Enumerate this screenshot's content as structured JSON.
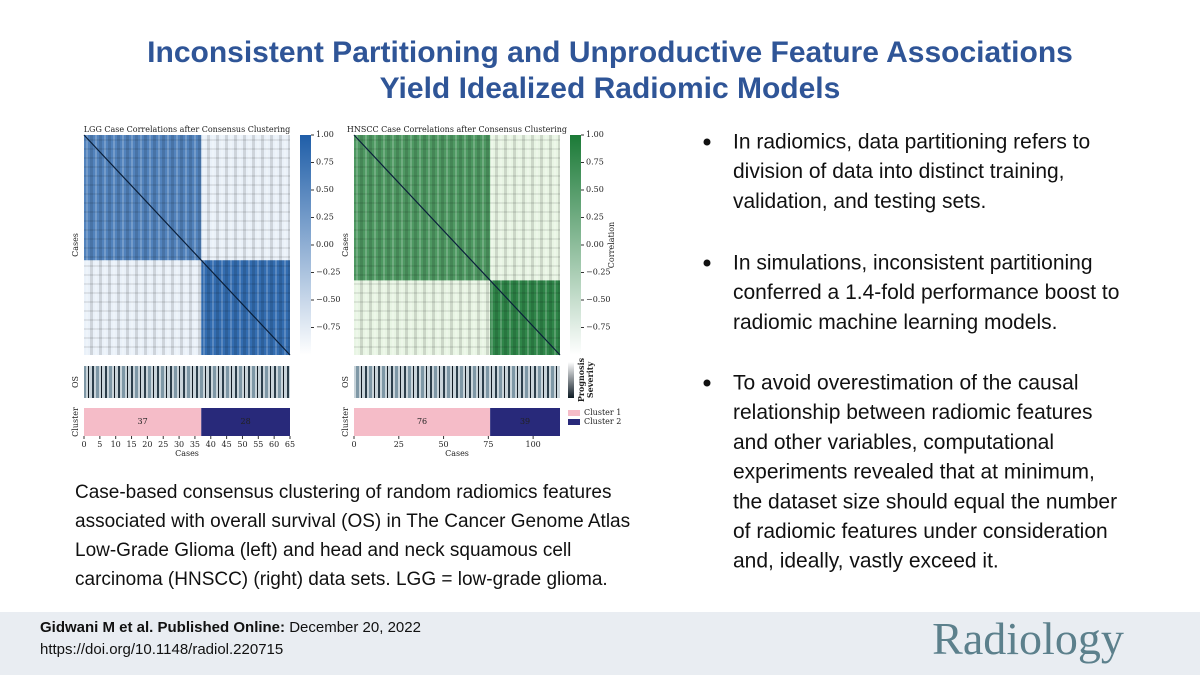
{
  "title": [
    "Inconsistent Partitioning and Unproductive Feature Associations",
    "Yield Idealized Radiomic Models"
  ],
  "figures": [
    {
      "title": "LGG Case Correlations after Consensus Clustering",
      "y_label": "Cases",
      "color": "#1f5ea8",
      "light_color": "#eaf1f9",
      "clim": [
        -1,
        1
      ],
      "colorbar_ticks": [
        {
          "value": 1,
          "label": "1.00"
        },
        {
          "value": 0.75,
          "label": "0.75"
        },
        {
          "value": 0.5,
          "label": "0.50"
        },
        {
          "value": 0.25,
          "label": "0.25"
        },
        {
          "value": 0,
          "label": "0.00"
        },
        {
          "value": -0.25,
          "label": "−0.25"
        },
        {
          "value": -0.5,
          "label": "−0.50"
        },
        {
          "value": -0.75,
          "label": "−0.75"
        }
      ],
      "os_label": "OS",
      "cluster_label": "Cluster",
      "clusters": [
        37,
        28
      ],
      "x_ticks": [
        0,
        5,
        10,
        15,
        20,
        25,
        30,
        35,
        40,
        45,
        50,
        55,
        60,
        65
      ],
      "x_label": "Cases"
    },
    {
      "title": "HNSCC Case Correlations after Consensus Clustering",
      "y_label": "Cases",
      "color": "#1b7a37",
      "light_color": "#e8f5e4",
      "clim": [
        -1,
        1
      ],
      "colorbar_ticks": [
        {
          "value": 1,
          "label": "1.00"
        },
        {
          "value": 0.75,
          "label": "0.75"
        },
        {
          "value": 0.5,
          "label": "0.50"
        },
        {
          "value": 0.25,
          "label": "0.25"
        },
        {
          "value": 0,
          "label": "0.00"
        },
        {
          "value": -0.25,
          "label": "−0.25"
        },
        {
          "value": -0.5,
          "label": "−0.50"
        },
        {
          "value": -0.75,
          "label": "−0.75"
        }
      ],
      "colorbar_label": "Correlation",
      "os_label": "OS",
      "os_colorbar_label": [
        "Prognosis",
        "Severity"
      ],
      "cluster_label": "Cluster",
      "clusters": [
        76,
        39
      ],
      "cluster_legend": [
        "Cluster 1",
        "Cluster 2"
      ],
      "x_ticks": [
        0,
        25,
        50,
        75,
        100
      ],
      "x_label": "Cases"
    }
  ],
  "cluster_colors": [
    "#f5bcc8",
    "#28297a"
  ],
  "bullets": [
    [
      "In radiomics, data partitioning refers to",
      "division of data into distinct training,",
      "validation, and testing sets."
    ],
    [
      "In simulations, inconsistent partitioning",
      "conferred a 1.4-fold performance boost to",
      "radiomic machine learning models."
    ],
    [
      "To avoid overestimation of the causal",
      "relationship between radiomic features",
      "and other variables, computational",
      "experiments revealed that at minimum,",
      "the dataset size should equal the number",
      "of radiomic features under consideration",
      "and, ideally, vastly exceed it."
    ]
  ],
  "caption": [
    "Case-based consensus clustering of random radiomics features",
    "associated with overall survival (OS) in The Cancer Genome Atlas",
    "Low-Grade Glioma (left) and head and neck squamous cell",
    "carcinoma (HNSCC) (right) data sets. LGG = low-grade glioma."
  ],
  "footer": {
    "author": "Gidwani M et al. Published Online:",
    "date": " December 20, 2022",
    "doi": "https://doi.org/10.1148/radiol.220715"
  },
  "logo": "Radiology"
}
